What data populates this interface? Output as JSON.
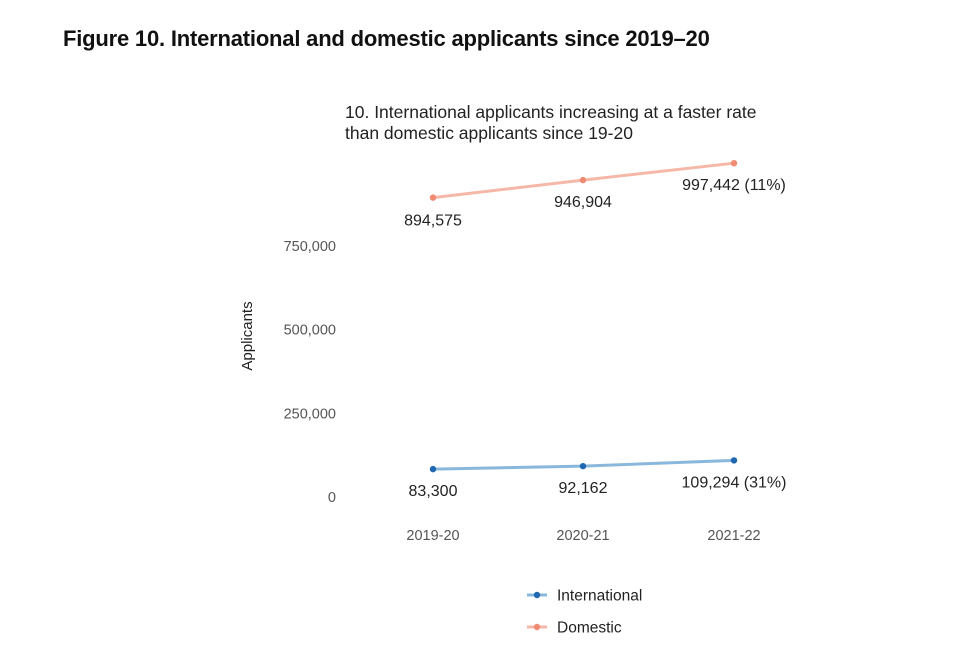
{
  "figure_title": "Figure 10. International and domestic applicants since 2019–20",
  "chart_data": {
    "type": "line",
    "title": "10. International applicants increasing at a faster rate\n than domestic applicants since 19-20",
    "xlabel": "",
    "ylabel": "Applicants",
    "categories": [
      "2019-20",
      "2020-21",
      "2021-22"
    ],
    "yticks": [
      0,
      250000,
      500000,
      750000
    ],
    "ytick_labels": [
      "0",
      "250,000",
      "500,000",
      "750,000"
    ],
    "ylim": [
      0,
      1000000
    ],
    "grid": false,
    "legend_position": "bottom",
    "series": [
      {
        "name": "International",
        "color": "#8ab8dc",
        "marker_color": "#1f67b0",
        "values": [
          83300,
          92162,
          109294
        ],
        "labels": [
          "83,300",
          "92,162",
          "109,294 (31%)"
        ]
      },
      {
        "name": "Domestic",
        "color": "#f5b8a8",
        "marker_color": "#f08b73",
        "values": [
          894575,
          946904,
          997442
        ],
        "labels": [
          "894,575",
          "946,904",
          "997,442 (11%)"
        ]
      }
    ]
  }
}
